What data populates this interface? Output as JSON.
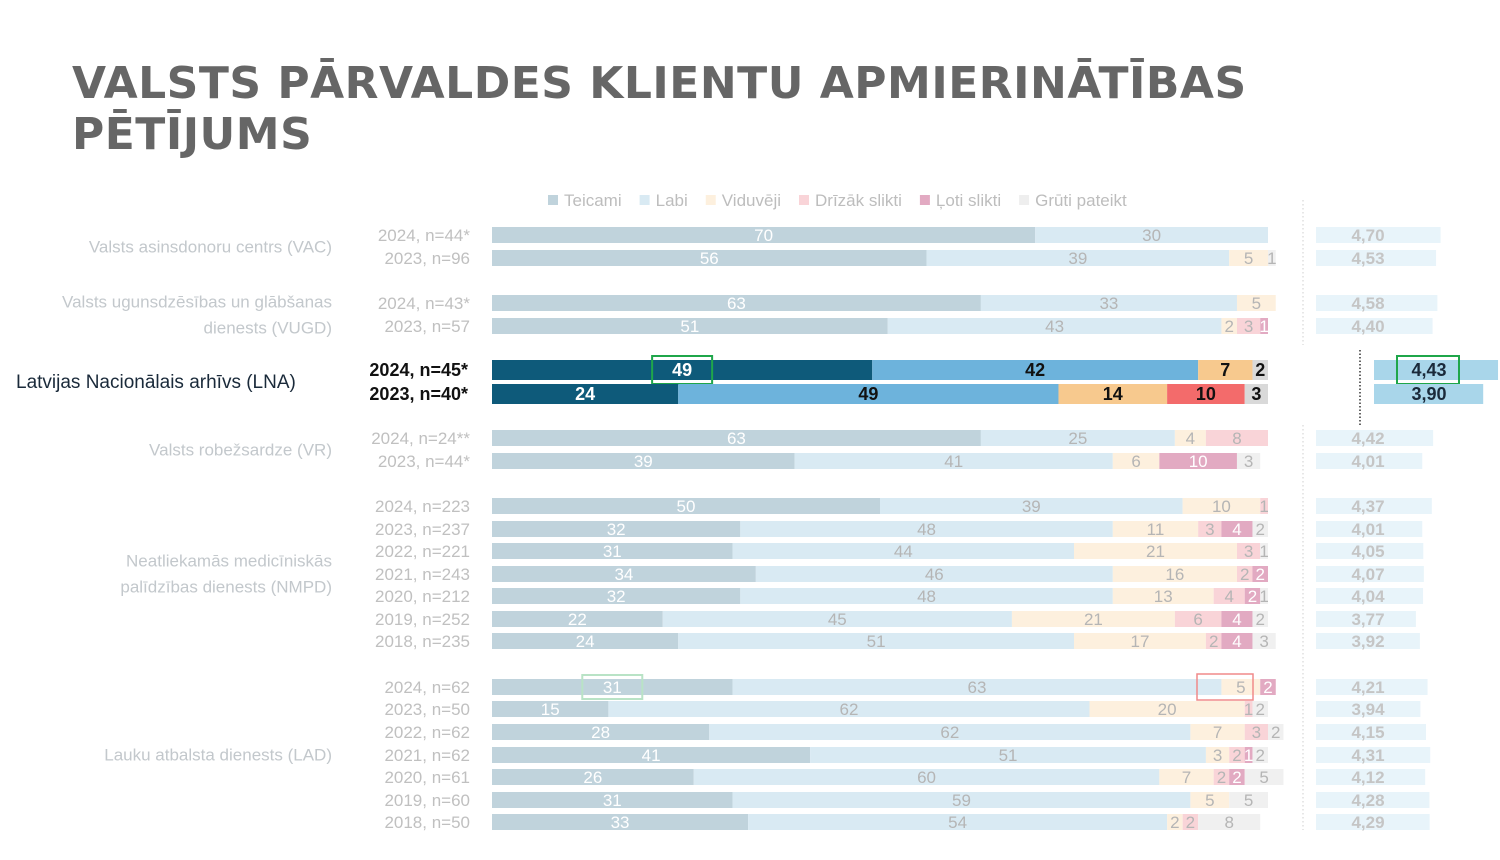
{
  "title": "VALSTS PĀRVALDES KLIENTU APMIERINĀTĪBAS PĒTĪJUMS",
  "chart_data": {
    "type": "bar",
    "orientation": "horizontal",
    "stacked": true,
    "unit": "%",
    "legend_position": "top",
    "series_names": [
      "Teicami",
      "Labi",
      "Viduvēji",
      "Drīzāk slikti",
      "Ļoti slikti",
      "Grūti pateikt"
    ],
    "colors": {
      "faded": [
        "#c0d3dc",
        "#d9eaf3",
        "#fdf0de",
        "#f9d4d8",
        "#e2aac2",
        "#f0f0f0"
      ],
      "highlight": [
        "#0e5a7a",
        "#6db3dc",
        "#f7c98e",
        "#f36b6b",
        "#c8547f",
        "#d9d9d9"
      ],
      "score_faded": "#e8f4fa",
      "score_highlight": "#a9d6ea",
      "marker_green": "#1fa64a",
      "marker_red": "#f08a8a"
    },
    "groups": [
      {
        "label": "Valsts asinsdonoru centrs (VAC)",
        "highlight": false,
        "rows": [
          {
            "label": "2024, n=44*",
            "values": [
              70,
              30,
              0,
              0,
              0,
              0
            ],
            "score": "4,70"
          },
          {
            "label": "2023, n=96",
            "values": [
              56,
              39,
              5,
              0,
              0,
              1
            ],
            "score": "4,53"
          }
        ]
      },
      {
        "label": "Valsts ugunsdzēsības un glābšanas dienests (VUGD)",
        "label_lines": [
          "Valsts ugunsdzēsības un glābšanas",
          "dienests (VUGD)"
        ],
        "highlight": false,
        "rows": [
          {
            "label": "2024, n=43*",
            "values": [
              63,
              33,
              5,
              0,
              0,
              0
            ],
            "score": "4,58"
          },
          {
            "label": "2023, n=57",
            "values": [
              51,
              43,
              2,
              3,
              1,
              0
            ],
            "score": "4,40"
          }
        ]
      },
      {
        "label": "Latvijas Nacionālais arhīvs (LNA)",
        "highlight": true,
        "rows": [
          {
            "label": "2024, n=45*",
            "values": [
              49,
              42,
              7,
              0,
              0,
              2
            ],
            "score": "4,43",
            "marked_teicami": true,
            "marked_score": true
          },
          {
            "label": "2023, n=40*",
            "values": [
              24,
              49,
              14,
              10,
              0,
              3
            ],
            "score": "3,90"
          }
        ]
      },
      {
        "label": "Valsts robežsardze (VR)",
        "highlight": false,
        "rows": [
          {
            "label": "2024, n=24**",
            "values": [
              63,
              25,
              4,
              8,
              0,
              0
            ],
            "score": "4,42"
          },
          {
            "label": "2023, n=44*",
            "values": [
              39,
              41,
              6,
              0,
              10,
              3
            ],
            "score": "4,01"
          }
        ]
      },
      {
        "label": "Neatliekamās medicīniskās palīdzības dienests (NMPD)",
        "label_lines": [
          "Neatliekamās medicīniskās",
          "palīdzības dienests (NMPD)"
        ],
        "highlight": false,
        "rows": [
          {
            "label": "2024, n=223",
            "values": [
              50,
              39,
              10,
              1,
              0,
              0
            ],
            "score": "4,37"
          },
          {
            "label": "2023, n=237",
            "values": [
              32,
              48,
              11,
              3,
              4,
              2
            ],
            "score": "4,01"
          },
          {
            "label": "2022, n=221",
            "values": [
              31,
              44,
              21,
              3,
              0,
              1
            ],
            "score": "4,05"
          },
          {
            "label": "2021, n=243",
            "values": [
              34,
              46,
              16,
              2,
              2,
              0
            ],
            "score": "4,07"
          },
          {
            "label": "2020, n=212",
            "values": [
              32,
              48,
              13,
              4,
              2,
              1
            ],
            "score": "4,04"
          },
          {
            "label": "2019, n=252",
            "values": [
              22,
              45,
              21,
              6,
              4,
              2
            ],
            "score": "3,77"
          },
          {
            "label": "2018, n=235",
            "values": [
              24,
              51,
              17,
              2,
              4,
              3
            ],
            "score": "3,92"
          }
        ]
      },
      {
        "label": "Lauku atbalsta dienests (LAD)",
        "highlight": false,
        "rows": [
          {
            "label": "2024, n=62",
            "values": [
              31,
              63,
              5,
              0,
              2,
              0
            ],
            "score": "4,21",
            "marked_teicami": true,
            "marked_negative": true
          },
          {
            "label": "2023, n=50",
            "values": [
              15,
              62,
              20,
              1,
              0,
              2
            ],
            "score": "3,94"
          },
          {
            "label": "2022, n=62",
            "values": [
              28,
              62,
              7,
              3,
              0,
              2
            ],
            "score": "4,15"
          },
          {
            "label": "2021, n=62",
            "values": [
              41,
              51,
              3,
              2,
              1,
              2
            ],
            "score": "4,31"
          },
          {
            "label": "2020, n=61",
            "values": [
              26,
              60,
              7,
              2,
              2,
              5
            ],
            "score": "4,12"
          },
          {
            "label": "2019, n=60",
            "values": [
              31,
              59,
              5,
              0,
              0,
              5
            ],
            "score": "4,28"
          },
          {
            "label": "2018, n=50",
            "values": [
              33,
              54,
              2,
              2,
              0,
              8
            ],
            "score": "4,29"
          }
        ]
      }
    ]
  }
}
